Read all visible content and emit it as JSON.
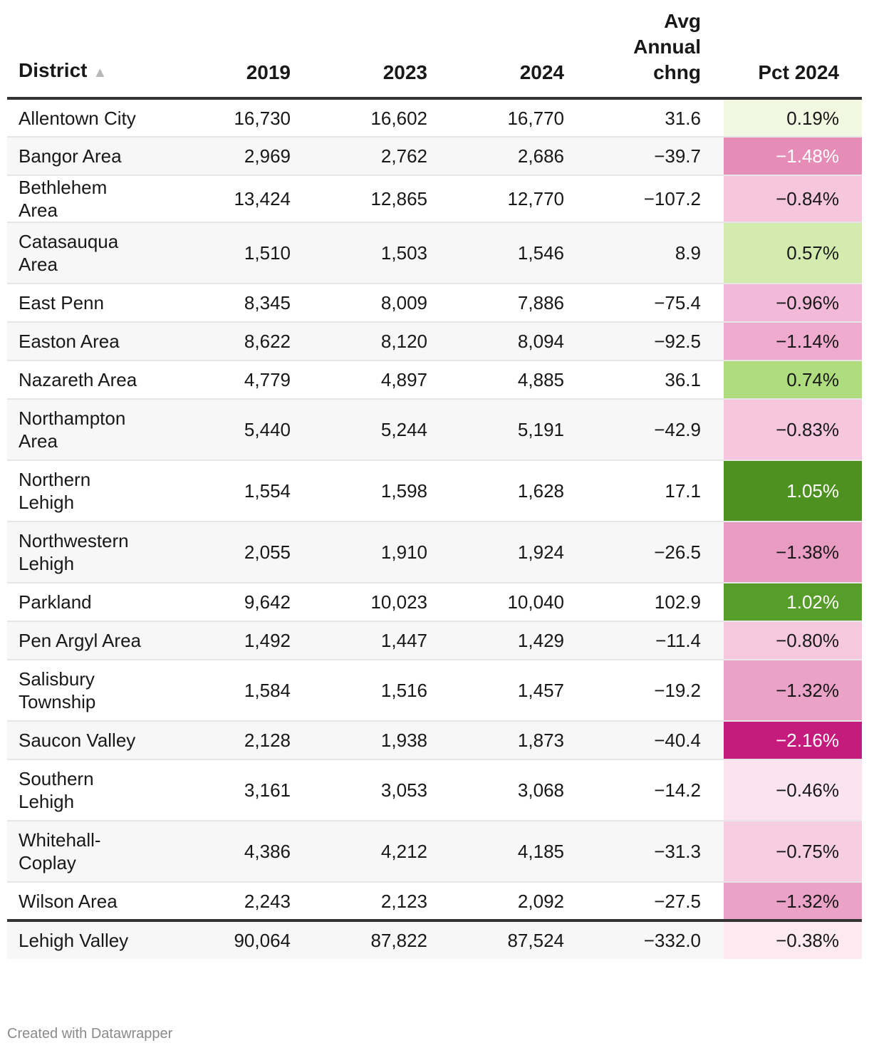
{
  "chart_data": {
    "type": "table",
    "columns": [
      "District",
      "2019",
      "2023",
      "2024",
      "Avg Annual chng",
      "Pct 2024"
    ],
    "sort_column": "District",
    "rows": [
      {
        "district": "Allentown City",
        "y2019": "16,730",
        "y2023": "16,602",
        "y2024": "16,770",
        "avg": "31.6",
        "pct": "0.19%",
        "pct_value": 0.19,
        "bg": "#f1f7e1",
        "fg": "#181818"
      },
      {
        "district": "Bangor Area",
        "y2019": "2,969",
        "y2023": "2,762",
        "y2024": "2,686",
        "avg": "−39.7",
        "pct": "−1.48%",
        "pct_value": -1.48,
        "bg": "#e68db7",
        "fg": "#ffffff"
      },
      {
        "district": "Bethlehem Area",
        "y2019": "13,424",
        "y2023": "12,865",
        "y2024": "12,770",
        "avg": "−107.2",
        "pct": "−0.84%",
        "pct_value": -0.84,
        "bg": "#f5c6de",
        "fg": "#181818"
      },
      {
        "district": "Catasauqua Area",
        "y2019": "1,510",
        "y2023": "1,503",
        "y2024": "1,546",
        "avg": "8.9",
        "pct": "0.57%",
        "pct_value": 0.57,
        "bg": "#d3ebaf",
        "fg": "#181818"
      },
      {
        "district": "East Penn",
        "y2019": "8,345",
        "y2023": "8,009",
        "y2024": "7,886",
        "avg": "−75.4",
        "pct": "−0.96%",
        "pct_value": -0.96,
        "bg": "#f2bad8",
        "fg": "#181818"
      },
      {
        "district": "Easton Area",
        "y2019": "8,622",
        "y2023": "8,120",
        "y2024": "8,094",
        "avg": "−92.5",
        "pct": "−1.14%",
        "pct_value": -1.14,
        "bg": "#eeabce",
        "fg": "#181818"
      },
      {
        "district": "Nazareth Area",
        "y2019": "4,779",
        "y2023": "4,897",
        "y2024": "4,885",
        "avg": "36.1",
        "pct": "0.74%",
        "pct_value": 0.74,
        "bg": "#afdc7e",
        "fg": "#181818"
      },
      {
        "district": "Northampton Area",
        "y2019": "5,440",
        "y2023": "5,244",
        "y2024": "5,191",
        "avg": "−42.9",
        "pct": "−0.83%",
        "pct_value": -0.83,
        "bg": "#f5c6de",
        "fg": "#181818"
      },
      {
        "district": "Northern Lehigh",
        "y2019": "1,554",
        "y2023": "1,598",
        "y2024": "1,628",
        "avg": "17.1",
        "pct": "1.05%",
        "pct_value": 1.05,
        "bg": "#4d9221",
        "fg": "#ffffff"
      },
      {
        "district": "Northwestern Lehigh",
        "y2019": "2,055",
        "y2023": "1,910",
        "y2024": "1,924",
        "avg": "−26.5",
        "pct": "−1.38%",
        "pct_value": -1.38,
        "bg": "#e99cc2",
        "fg": "#181818"
      },
      {
        "district": "Parkland",
        "y2019": "9,642",
        "y2023": "10,023",
        "y2024": "10,040",
        "avg": "102.9",
        "pct": "1.02%",
        "pct_value": 1.02,
        "bg": "#579d2a",
        "fg": "#ffffff"
      },
      {
        "district": "Pen Argyl Area",
        "y2019": "1,492",
        "y2023": "1,447",
        "y2024": "1,429",
        "avg": "−11.4",
        "pct": "−0.80%",
        "pct_value": -0.8,
        "bg": "#f6c8df",
        "fg": "#181818"
      },
      {
        "district": "Salisbury Township",
        "y2019": "1,584",
        "y2023": "1,516",
        "y2024": "1,457",
        "avg": "−19.2",
        "pct": "−1.32%",
        "pct_value": -1.32,
        "bg": "#eaa2c7",
        "fg": "#181818"
      },
      {
        "district": "Saucon Valley",
        "y2019": "2,128",
        "y2023": "1,938",
        "y2024": "1,873",
        "avg": "−40.4",
        "pct": "−2.16%",
        "pct_value": -2.16,
        "bg": "#c51b7d",
        "fg": "#ffffff"
      },
      {
        "district": "Southern Lehigh",
        "y2019": "3,161",
        "y2023": "3,053",
        "y2024": "3,068",
        "avg": "−14.2",
        "pct": "−0.46%",
        "pct_value": -0.46,
        "bg": "#fbe3ef",
        "fg": "#181818"
      },
      {
        "district": "Whitehall-Coplay",
        "y2019": "4,386",
        "y2023": "4,212",
        "y2024": "4,185",
        "avg": "−31.3",
        "pct": "−0.75%",
        "pct_value": -0.75,
        "bg": "#f7cde2",
        "fg": "#181818"
      },
      {
        "district": "Wilson Area",
        "y2019": "2,243",
        "y2023": "2,123",
        "y2024": "2,092",
        "avg": "−27.5",
        "pct": "−1.32%",
        "pct_value": -1.32,
        "bg": "#eaa2c7",
        "fg": "#181818"
      }
    ],
    "total": {
      "district": "Lehigh Valley",
      "y2019": "90,064",
      "y2023": "87,822",
      "y2024": "87,524",
      "avg": "−332.0",
      "pct": "−0.38%",
      "pct_value": -0.38,
      "bg": "#fdeaf1",
      "fg": "#181818"
    }
  },
  "header": {
    "district": "District",
    "sort_icon": "▲",
    "y2019": "2019",
    "y2023": "2023",
    "y2024": "2024",
    "avg_line1": "Avg",
    "avg_line2": "Annual",
    "avg_line3": "chng",
    "pct": "Pct 2024"
  },
  "footer": {
    "credit": "Created with Datawrapper"
  }
}
